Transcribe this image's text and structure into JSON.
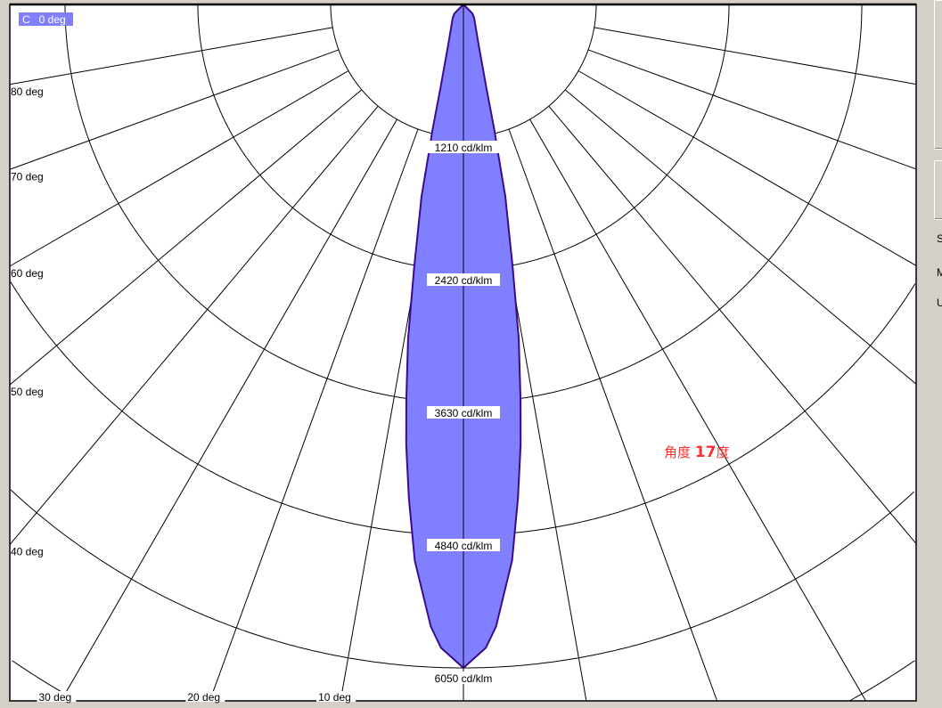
{
  "plane_label": "C   0 deg",
  "annotation": {
    "prefix": "角度 ",
    "value": "17",
    "suffix": "度",
    "color": "#ff3030"
  },
  "side_panel": {
    "labels": [
      "S",
      "M",
      "U"
    ]
  },
  "chart_data": {
    "type": "polar",
    "title": "",
    "plane": "C 0 deg",
    "unit": "cd/klm",
    "rings": [
      1210,
      2420,
      3630,
      4840,
      6050,
      7260
    ],
    "ring_labels": [
      "1210 cd/klm",
      "2420 cd/klm",
      "3630 cd/klm",
      "4840 cd/klm",
      "6050 cd/klm"
    ],
    "angle_ticks": [
      10,
      20,
      30,
      40,
      50,
      60,
      70,
      80
    ],
    "angle_labels": [
      "10 deg",
      "20 deg",
      "30 deg",
      "40 deg",
      "50 deg",
      "60 deg",
      "70 deg",
      "80 deg"
    ],
    "series": [
      {
        "gamma_deg": [
          0,
          2,
          3,
          5,
          6.3,
          7.4,
          8.2,
          9.4,
          10.6,
          12.3,
          13.4,
          13.8,
          15.3,
          20.7,
          38.7,
          45,
          90
        ],
        "intensity": [
          6050,
          5870,
          5680,
          5090,
          4530,
          4050,
          3650,
          3090,
          2440,
          1790,
          1290,
          1200,
          800,
          390,
          156,
          115,
          0
        ],
        "mirrored": true
      }
    ],
    "colors": {
      "fill": "#8080ff",
      "outline": "#3c0a8c",
      "grid": "#000000",
      "label_bg": "#8080ff"
    },
    "grid": true
  }
}
